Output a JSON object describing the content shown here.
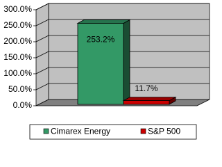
{
  "chart_data": {
    "type": "bar3d",
    "categories": [
      null
    ],
    "series": [
      {
        "name": "Cimarex Energy",
        "color": "#339966",
        "values": [
          253.2
        ],
        "value_labels": [
          "253.2%"
        ]
      },
      {
        "name": "S&P 500",
        "color": "#cc0000",
        "values": [
          11.7
        ],
        "value_labels": [
          "11.7%"
        ]
      }
    ],
    "ylim": [
      0,
      300
    ],
    "yticks": [
      {
        "value": 0,
        "label": "0.0%"
      },
      {
        "value": 50,
        "label": "50.0%"
      },
      {
        "value": 100,
        "label": "100.0%"
      },
      {
        "value": 150,
        "label": "150.0%"
      },
      {
        "value": 200,
        "label": "200.0%"
      },
      {
        "value": 250,
        "label": "250.0%"
      },
      {
        "value": 300,
        "label": "300.0%"
      }
    ],
    "grid": true,
    "legend": "bottom"
  }
}
